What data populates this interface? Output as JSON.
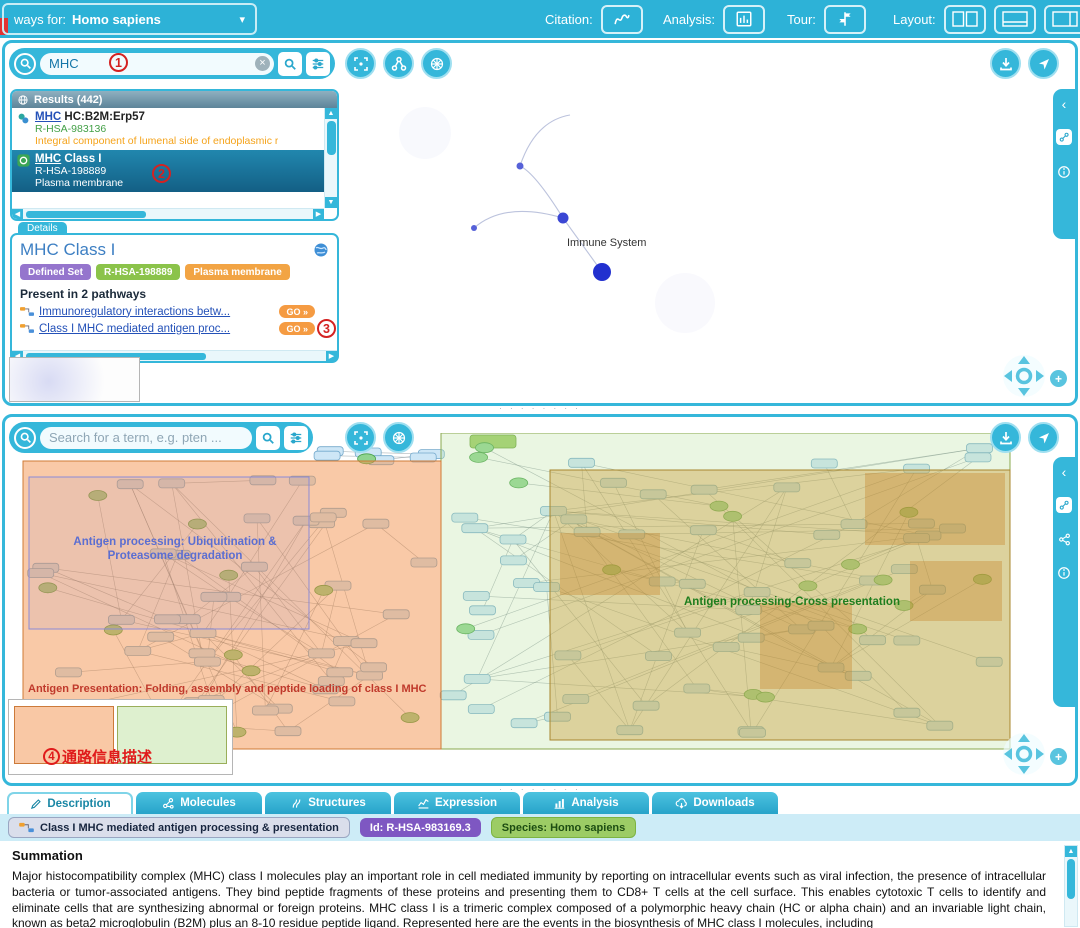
{
  "topbar": {
    "species_prefix": "ways for:",
    "species_value": "Homo sapiens",
    "citation_label": "Citation:",
    "analysis_label": "Analysis:",
    "tour_label": "Tour:",
    "layout_label": "Layout:"
  },
  "overview": {
    "search_value": "MHC",
    "results_header": "Results (442)",
    "results": [
      {
        "name_prefix": "MHC",
        "name_rest": " HC:B2M:Erp57",
        "id": "R-HSA-983136",
        "compartment": "Integral component of lumenal side of endoplasmic r"
      },
      {
        "name_prefix": "MHC",
        "name_rest": " Class I",
        "id": "R-HSA-198889",
        "compartment": "Plasma membrane"
      }
    ],
    "details": {
      "tab_label": "Details",
      "title": "MHC Class I",
      "badge_type": "Defined Set",
      "badge_id": "R-HSA-198889",
      "badge_compartment": "Plasma membrane",
      "pathways_header": "Present in 2 pathways",
      "pathway_links": [
        {
          "label": "Immunoregulatory interactions betw...",
          "go_label": "GO »"
        },
        {
          "label": "Class I MHC mediated antigen proc...",
          "go_label": "GO »"
        }
      ]
    },
    "graph_label": "Immune System"
  },
  "diagram": {
    "search_placeholder": "Search for a term, e.g. pten ...",
    "region_labels": {
      "ubiquitination": "Antigen processing: Ubiquitination & Proteasome degradation",
      "folding": "Antigen Presentation: Folding, assembly and peptide loading of class I MHC",
      "cross_presentation": "Antigen processing-Cross presentation"
    },
    "thumbnail_note": "通路信息描述"
  },
  "annotations": {
    "step1": "1",
    "step2": "2",
    "step3": "3",
    "step4": "4"
  },
  "tabs": [
    {
      "label": "Description"
    },
    {
      "label": "Molecules"
    },
    {
      "label": "Structures"
    },
    {
      "label": "Expression"
    },
    {
      "label": "Analysis"
    },
    {
      "label": "Downloads"
    }
  ],
  "infobar": {
    "pathway_name": "Class I MHC mediated antigen processing & presentation",
    "id_label": "Id: R-HSA-983169.3",
    "species_label": "Species: Homo sapiens"
  },
  "summation": {
    "heading": "Summation",
    "body": "Major histocompatibility complex (MHC) class I molecules play an important role in cell mediated immunity by reporting on intracellular events such as viral infection, the presence of intracellular bacteria or tumor-associated antigens. They bind peptide fragments of these proteins and presenting them to CD8+ T cells at the cell surface. This enables cytotoxic T cells to identify and eliminate cells that are synthesizing abnormal or foreign proteins. MHC class I is a trimeric complex composed of a polymorphic heavy chain (HC or alpha chain) and an invariable light chain, known as beta2 microglobulin (B2M) plus an 8-10 residue peptide ligand. Represented here are the events in the biosynthesis of MHC class I molecules, including"
  },
  "ui": {
    "divider_dots": "· · · ·   · · · ·",
    "go_arrows": "»"
  },
  "icons": [
    "search-icon",
    "sliders-icon",
    "clear-icon",
    "fit-icon",
    "tree-icon",
    "network-icon",
    "download-icon",
    "compass-icon",
    "globe-icon",
    "chevron-down-icon",
    "chevron-left-icon",
    "info-icon",
    "interactors-icon",
    "citation-icon",
    "analysis-icon",
    "tour-icon",
    "layout-icon",
    "pathway-icon",
    "complex-icon",
    "entity-set-icon",
    "earth-icon",
    "nav-cross-icon",
    "plus-icon",
    "pencil-icon",
    "molecule-icon",
    "structure-icon",
    "expression-icon",
    "bars-icon",
    "cloud-download-icon"
  ],
  "colors": {
    "teal": "#35b7da",
    "badge_purple": "#9575cd",
    "badge_green": "#8bc34a",
    "badge_orange": "#f2a444",
    "go_orange": "#f59b42",
    "annotation_red": "#d42222",
    "region_orange": "#f38f48",
    "region_tan": "#c8a03e",
    "region_green": "#bae29e",
    "label_blue": "#5b6ed1",
    "label_red": "#c0392b",
    "label_green": "#1e7e1e"
  }
}
